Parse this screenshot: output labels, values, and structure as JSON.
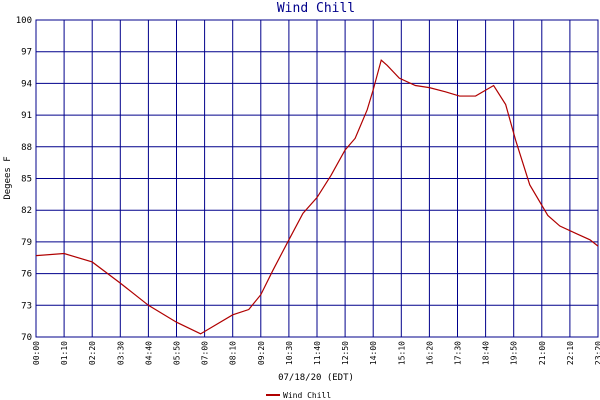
{
  "chart_data": {
    "type": "line",
    "title": "Wind Chill",
    "x_label": "07/18/20 (EDT)",
    "y_label": "Degees F",
    "xlim": [
      0,
      1400
    ],
    "xticks": [
      {
        "value": 0,
        "label": "00:00"
      },
      {
        "value": 70,
        "label": "01:10"
      },
      {
        "value": 140,
        "label": "02:20"
      },
      {
        "value": 210,
        "label": "03:30"
      },
      {
        "value": 280,
        "label": "04:40"
      },
      {
        "value": 350,
        "label": "05:50"
      },
      {
        "value": 420,
        "label": "07:00"
      },
      {
        "value": 490,
        "label": "08:10"
      },
      {
        "value": 560,
        "label": "09:20"
      },
      {
        "value": 630,
        "label": "10:30"
      },
      {
        "value": 700,
        "label": "11:40"
      },
      {
        "value": 770,
        "label": "12:50"
      },
      {
        "value": 840,
        "label": "14:00"
      },
      {
        "value": 910,
        "label": "15:10"
      },
      {
        "value": 980,
        "label": "16:20"
      },
      {
        "value": 1050,
        "label": "17:30"
      },
      {
        "value": 1120,
        "label": "18:40"
      },
      {
        "value": 1190,
        "label": "19:50"
      },
      {
        "value": 1260,
        "label": "21:00"
      },
      {
        "value": 1330,
        "label": "22:10"
      },
      {
        "value": 1400,
        "label": "23:20"
      }
    ],
    "ylim": [
      70,
      100
    ],
    "yticks": [
      70,
      73,
      76,
      79,
      82,
      85,
      88,
      91,
      94,
      97,
      100
    ],
    "grid": true,
    "legend": "bottom",
    "x": [
      0,
      70,
      140,
      210,
      280,
      350,
      410,
      490,
      530,
      560,
      590,
      630,
      665,
      700,
      735,
      770,
      795,
      825,
      840,
      860,
      875,
      905,
      945,
      980,
      1020,
      1055,
      1095,
      1140,
      1170,
      1195,
      1230,
      1275,
      1305,
      1345,
      1380,
      1400
    ],
    "series": [
      {
        "name": "Wind Chill",
        "color": "#b00000",
        "values": [
          77.7,
          77.9,
          77.1,
          75.1,
          73.0,
          71.4,
          70.3,
          72.1,
          72.6,
          74.0,
          76.3,
          79.2,
          81.7,
          83.2,
          85.3,
          87.7,
          88.8,
          91.5,
          93.4,
          96.2,
          95.7,
          94.5,
          93.8,
          93.6,
          93.2,
          92.8,
          92.8,
          93.8,
          92.0,
          88.6,
          84.4,
          81.5,
          80.5,
          79.8,
          79.2,
          78.6
        ]
      }
    ]
  }
}
